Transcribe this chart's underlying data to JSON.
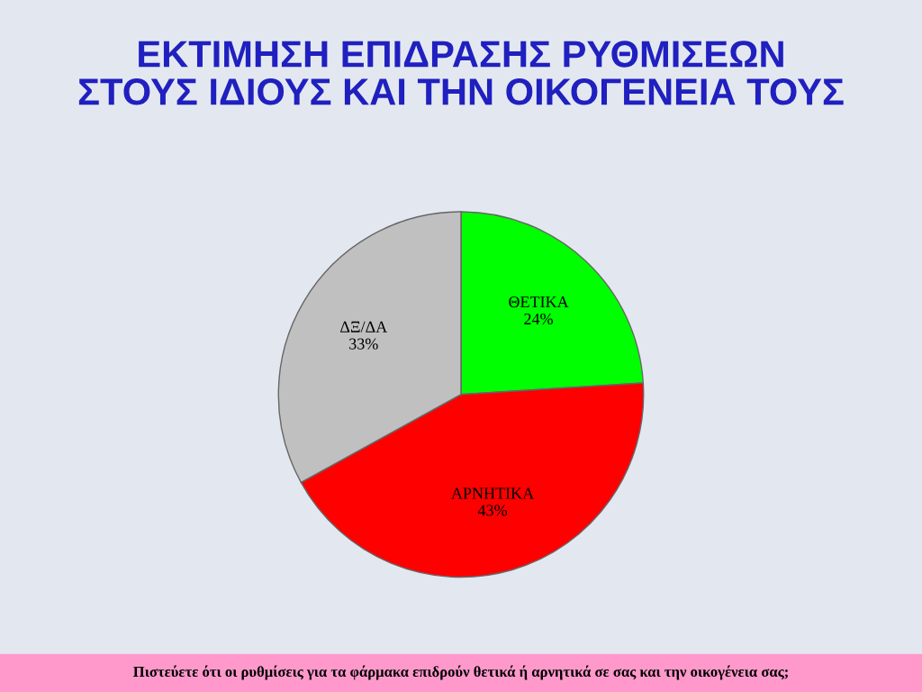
{
  "chart_data": {
    "type": "pie",
    "title": "ΕΚΤΙΜΗΣΗ ΕΠΙΔΡΑΣΗΣ ΡΥΘΜΙΣΕΩΝ\nΣΤΟΥΣ ΙΔΙΟΥΣ ΚΑΙ ΤΗΝ ΟΙΚΟΓΕΝΕΙΑ ΤΟΥΣ",
    "categories": [
      "ΘΕΤΙΚΑ",
      "ΑΡΝΗΤΙΚΑ",
      "ΔΞ/ΔΑ"
    ],
    "values": [
      24,
      43,
      33
    ],
    "colors": [
      "#00ff00",
      "#ff0000",
      "#c0c0c0"
    ],
    "value_labels": [
      "24%",
      "43%",
      "33%"
    ],
    "legend": false,
    "annotations": [
      "Πιστεύετε ότι οι ρυθμίσεις για τα φάρμακα επιδρούν θετικά ή αρνητικά σε σας και την οικογένεια σας;"
    ]
  }
}
